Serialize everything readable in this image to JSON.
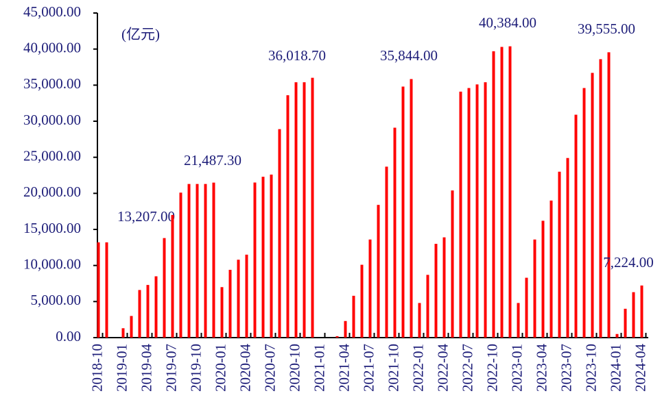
{
  "chart_data": {
    "type": "bar",
    "annotation": "(亿元)",
    "color": "#ff0000",
    "categories": [
      "2018-10",
      null,
      null,
      "2019-01",
      null,
      null,
      "2019-04",
      null,
      null,
      "2019-07",
      null,
      null,
      "2019-10",
      null,
      null,
      "2020-01",
      null,
      null,
      "2020-04",
      null,
      null,
      "2020-07",
      null,
      null,
      "2020-10",
      null,
      null,
      "2021-01",
      null,
      null,
      "2021-04",
      null,
      null,
      "2021-07",
      null,
      null,
      "2021-10",
      null,
      null,
      "2022-01",
      null,
      null,
      "2022-04",
      null,
      null,
      "2022-07",
      null,
      null,
      "2022-10",
      null,
      null,
      "2023-01",
      null,
      null,
      "2023-04",
      null,
      null,
      "2023-07",
      null,
      null,
      "2023-10",
      null,
      null,
      "2024-01",
      null,
      null,
      "2024-04"
    ],
    "values": [
      13207,
      13207,
      0,
      1300,
      3000,
      6600,
      7300,
      8500,
      13800,
      17000,
      20100,
      21300,
      21300,
      21300,
      21487.3,
      7000,
      9400,
      10800,
      11500,
      21500,
      22300,
      22600,
      28900,
      33600,
      35400,
      35400,
      36018.7,
      0,
      0,
      200,
      2300,
      5800,
      10100,
      13600,
      18400,
      23700,
      29100,
      34800,
      35844,
      4800,
      8700,
      13000,
      13900,
      20400,
      34100,
      34600,
      35100,
      35400,
      39700,
      40300,
      40384,
      4800,
      8300,
      13600,
      16200,
      19000,
      23000,
      24900,
      30900,
      34600,
      36700,
      38600,
      39555,
      500,
      4000,
      6300,
      7224
    ],
    "value_labels": [
      null,
      "13,207.00",
      null,
      null,
      null,
      null,
      null,
      null,
      null,
      null,
      null,
      null,
      null,
      null,
      "21,487.30",
      null,
      null,
      null,
      null,
      null,
      null,
      null,
      null,
      null,
      null,
      null,
      "36,018.70",
      null,
      null,
      null,
      null,
      null,
      null,
      null,
      null,
      null,
      null,
      null,
      "35,844.00",
      null,
      null,
      null,
      null,
      null,
      null,
      null,
      null,
      null,
      null,
      null,
      "40,384.00",
      null,
      null,
      null,
      null,
      null,
      null,
      null,
      null,
      null,
      null,
      null,
      "39,555.00",
      null,
      null,
      null,
      "7,224.00"
    ],
    "ylim": [
      0,
      45000
    ],
    "yticks": [
      {
        "value": 0,
        "label": "0.00"
      },
      {
        "value": 5000,
        "label": "5,000.00"
      },
      {
        "value": 10000,
        "label": "10,000.00"
      },
      {
        "value": 15000,
        "label": "15,000.00"
      },
      {
        "value": 20000,
        "label": "20,000.00"
      },
      {
        "value": 25000,
        "label": "25,000.00"
      },
      {
        "value": 30000,
        "label": "30,000.00"
      },
      {
        "value": 35000,
        "label": "35,000.00"
      },
      {
        "value": 40000,
        "label": "40,000.00"
      },
      {
        "value": 45000,
        "label": "45,000.00"
      }
    ]
  }
}
